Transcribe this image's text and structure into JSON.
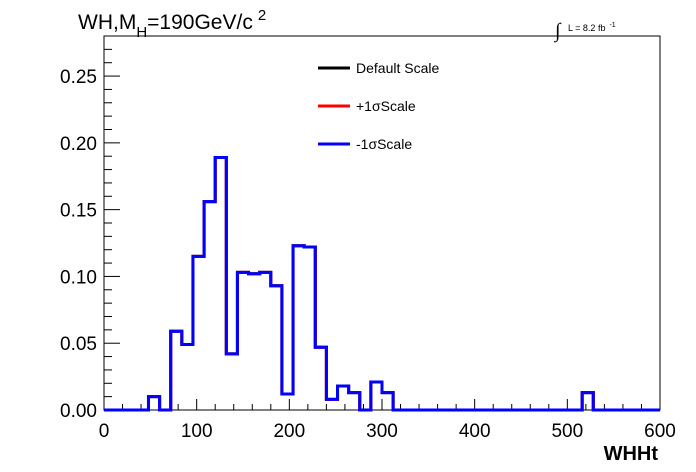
{
  "title": {
    "main": "WH,M",
    "sub": "H",
    "rest": "=190GeV/c",
    "sup": "2"
  },
  "lumi": {
    "integral": "∫",
    "text": "L = 8.2 fb",
    "sup": "-1"
  },
  "chart_data": {
    "type": "line",
    "xlabel": "WHHt",
    "ylabel": "",
    "xlim": [
      0,
      600
    ],
    "ylim": [
      0,
      0.28
    ],
    "xticks": [
      0,
      100,
      200,
      300,
      400,
      500,
      600
    ],
    "xtick_labels": [
      "0",
      "100",
      "200",
      "300",
      "400",
      "500",
      "600"
    ],
    "yticks": [
      0,
      0.05,
      0.1,
      0.15,
      0.2,
      0.25
    ],
    "ytick_labels": [
      "0.00",
      "0.05",
      "0.10",
      "0.15",
      "0.20",
      "0.25"
    ],
    "bin_edges": [
      0,
      12,
      24,
      36,
      48,
      60,
      72,
      84,
      96,
      108,
      120,
      132,
      144,
      156,
      168,
      180,
      192,
      204,
      216,
      228,
      240,
      252,
      264,
      276,
      288,
      300,
      312,
      324,
      336,
      348,
      360,
      372,
      384,
      396,
      408,
      420,
      432,
      444,
      456,
      468,
      480,
      492,
      504,
      516,
      528,
      540,
      552,
      564,
      576,
      588,
      600
    ],
    "series": [
      {
        "name": "Default Scale",
        "color": "#000000",
        "values": [
          0,
          0,
          0,
          0,
          0.01,
          0,
          0.059,
          0.049,
          0.115,
          0.156,
          0.189,
          0.042,
          0.103,
          0.102,
          0.103,
          0.093,
          0.012,
          0.123,
          0.122,
          0.047,
          0.008,
          0.018,
          0.013,
          0,
          0.021,
          0.013,
          0,
          0,
          0,
          0,
          0,
          0,
          0,
          0,
          0,
          0,
          0,
          0,
          0,
          0,
          0,
          0,
          0,
          0.013,
          0,
          0,
          0,
          0,
          0,
          0
        ]
      },
      {
        "name": "+1σScale",
        "color": "#ff0000",
        "values": [
          0,
          0,
          0,
          0,
          0.01,
          0,
          0.059,
          0.049,
          0.115,
          0.156,
          0.189,
          0.042,
          0.103,
          0.102,
          0.103,
          0.093,
          0.012,
          0.123,
          0.122,
          0.047,
          0.008,
          0.018,
          0.013,
          0,
          0.021,
          0.013,
          0,
          0,
          0,
          0,
          0,
          0,
          0,
          0,
          0,
          0,
          0,
          0,
          0,
          0,
          0,
          0,
          0,
          0.013,
          0,
          0,
          0,
          0,
          0,
          0
        ]
      },
      {
        "name": "-1σScale",
        "color": "#0000ff",
        "values": [
          0,
          0,
          0,
          0,
          0.01,
          0,
          0.059,
          0.049,
          0.115,
          0.156,
          0.189,
          0.042,
          0.103,
          0.102,
          0.103,
          0.093,
          0.012,
          0.123,
          0.122,
          0.047,
          0.008,
          0.018,
          0.013,
          0,
          0.021,
          0.013,
          0,
          0,
          0,
          0,
          0,
          0,
          0,
          0,
          0,
          0,
          0,
          0,
          0,
          0,
          0,
          0,
          0,
          0.013,
          0,
          0,
          0,
          0,
          0,
          0
        ]
      }
    ],
    "legend_position": "top-center",
    "grid": false
  }
}
